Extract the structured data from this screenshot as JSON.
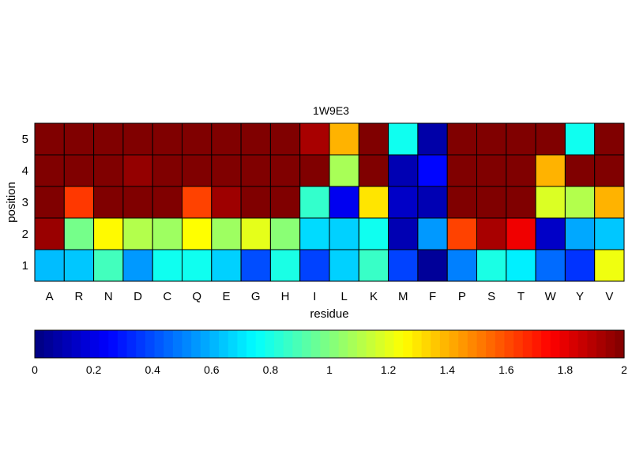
{
  "chart_data": {
    "type": "heatmap",
    "title": "1W9E3",
    "xlabel": "residue",
    "ylabel": "position",
    "x_categories": [
      "A",
      "R",
      "N",
      "D",
      "C",
      "Q",
      "E",
      "G",
      "H",
      "I",
      "L",
      "K",
      "M",
      "F",
      "P",
      "S",
      "T",
      "W",
      "Y",
      "V"
    ],
    "y_categories": [
      "1",
      "2",
      "3",
      "4",
      "5"
    ],
    "values": [
      [
        0.62,
        0.64,
        0.88,
        0.55,
        0.78,
        0.78,
        0.66,
        0.4,
        0.8,
        0.38,
        0.66,
        0.86,
        0.38,
        0.05,
        0.5,
        0.8,
        0.72,
        0.46,
        0.35,
        1.22
      ],
      [
        1.95,
        0.98,
        1.26,
        1.1,
        1.06,
        1.25,
        1.06,
        1.2,
        1.02,
        0.68,
        0.66,
        0.78,
        0.1,
        0.55,
        1.62,
        1.92,
        1.78,
        0.14,
        0.58,
        0.64
      ],
      [
        2.0,
        1.64,
        2.0,
        2.0,
        2.0,
        1.62,
        1.94,
        2.0,
        2.0,
        0.85,
        0.22,
        1.3,
        0.14,
        0.1,
        2.0,
        2.0,
        2.0,
        1.18,
        1.1,
        1.4
      ],
      [
        2.0,
        2.0,
        2.0,
        1.96,
        2.0,
        2.0,
        2.0,
        2.0,
        2.0,
        2.0,
        1.08,
        2.0,
        0.1,
        0.26,
        2.0,
        2.0,
        2.0,
        1.4,
        2.0,
        2.0
      ],
      [
        2.0,
        2.0,
        2.0,
        2.0,
        2.0,
        2.0,
        2.0,
        2.0,
        2.0,
        1.92,
        1.4,
        2.0,
        0.78,
        0.08,
        2.0,
        2.0,
        2.0,
        2.0,
        0.78,
        2.0
      ]
    ],
    "colorbar": {
      "colormap": "jet",
      "range": [
        0,
        2
      ],
      "ticks": [
        "0",
        "0.2",
        "0.4",
        "0.6",
        "0.8",
        "1",
        "1.2",
        "1.4",
        "1.6",
        "1.8",
        "2"
      ]
    },
    "grid": true
  }
}
